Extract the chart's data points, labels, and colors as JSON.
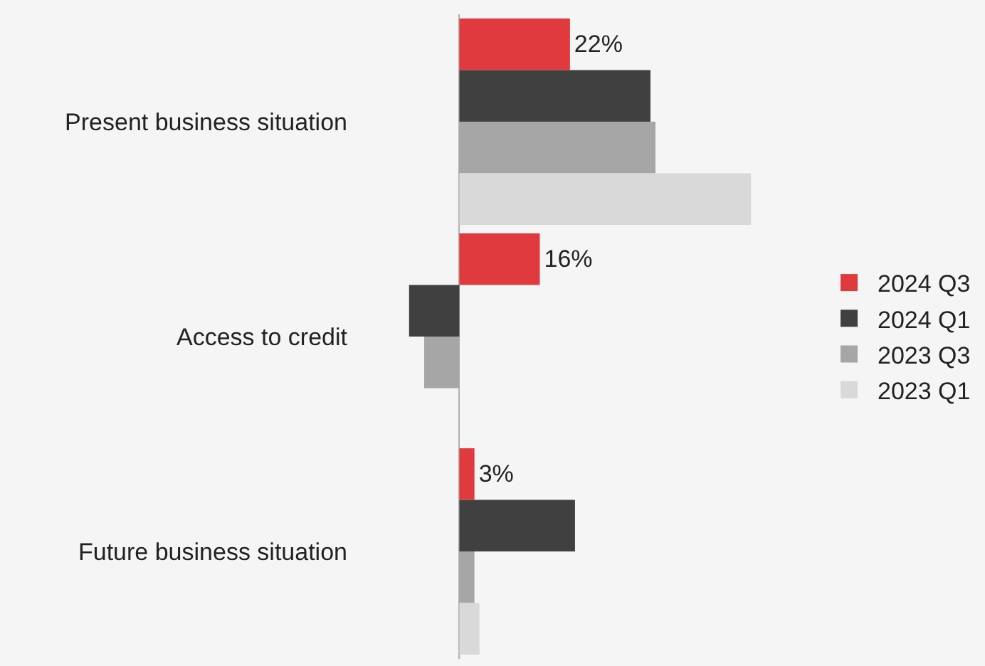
{
  "chart_data": {
    "type": "bar",
    "orientation": "horizontal",
    "categories": [
      "Present business situation",
      "Access to credit",
      "Future business situation"
    ],
    "series": [
      {
        "name": "2024 Q3",
        "color": "#e0393e",
        "values": [
          22,
          16,
          3
        ],
        "value_labels": [
          "22%",
          "16%",
          "3%"
        ]
      },
      {
        "name": "2024 Q1",
        "color": "#404040",
        "values": [
          38,
          -10,
          23
        ]
      },
      {
        "name": "2023 Q3",
        "color": "#a6a6a6",
        "values": [
          39,
          -7,
          3
        ]
      },
      {
        "name": "2023 Q1",
        "color": "#d9d9d9",
        "values": [
          58,
          null,
          4
        ]
      }
    ],
    "legend": "right",
    "grid": false
  }
}
